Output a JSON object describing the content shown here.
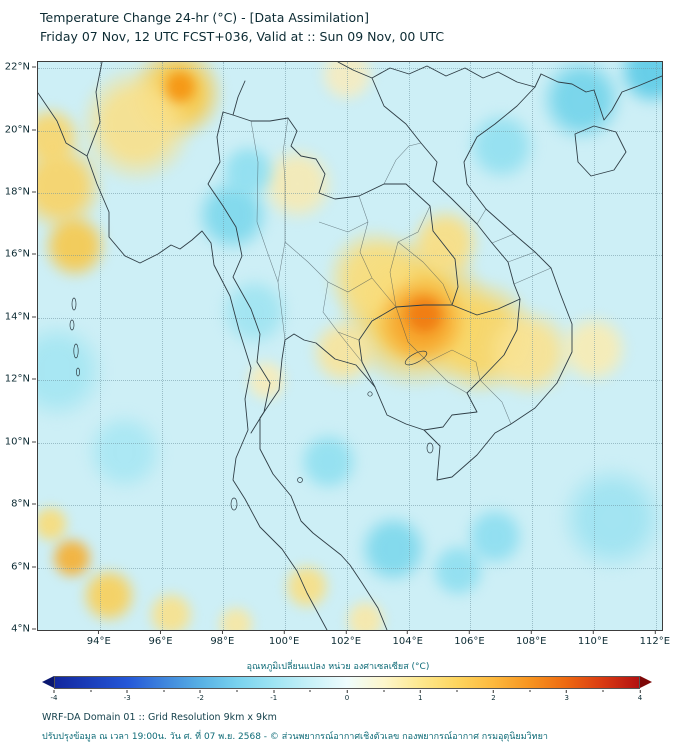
{
  "colors": {
    "background": "#ffffff",
    "map_base": "#cdeff6",
    "frame": "#3c3c3c",
    "grid": "#6f95a1",
    "title_text": "#0c2b33",
    "thai_text": "#0e6b77",
    "footer_text": "#16424d"
  },
  "header": {
    "title_line1": "Temperature Change 24-hr (°C) - [Data Assimilation]",
    "title_line2": "Friday 07 Nov, 12 UTC FCST+036, Valid at :: Sun 09 Nov, 00 UTC"
  },
  "map": {
    "lon_range": [
      92,
      112.2
    ],
    "lat_range": [
      4,
      22.2
    ],
    "x_ticks": [
      {
        "value": 94,
        "label": "94°E"
      },
      {
        "value": 96,
        "label": "96°E"
      },
      {
        "value": 98,
        "label": "98°E"
      },
      {
        "value": 100,
        "label": "100°E"
      },
      {
        "value": 102,
        "label": "102°E"
      },
      {
        "value": 104,
        "label": "104°E"
      },
      {
        "value": 106,
        "label": "106°E"
      },
      {
        "value": 108,
        "label": "108°E"
      },
      {
        "value": 110,
        "label": "110°E"
      },
      {
        "value": 112,
        "label": "112°E"
      }
    ],
    "y_ticks": [
      {
        "value": 4,
        "label": "4°N"
      },
      {
        "value": 6,
        "label": "6°N"
      },
      {
        "value": 8,
        "label": "8°N"
      },
      {
        "value": 10,
        "label": "10°N"
      },
      {
        "value": 12,
        "label": "12°N"
      },
      {
        "value": 14,
        "label": "14°N"
      },
      {
        "value": 16,
        "label": "16°N"
      },
      {
        "value": 18,
        "label": "18°N"
      },
      {
        "value": 20,
        "label": "20°N"
      },
      {
        "value": 22,
        "label": "22°N"
      }
    ]
  },
  "colorbar": {
    "title": "อุณหภูมิเปลี่ยนแปลง หน่วย องศาเซลเซียส (°C)",
    "min": -4,
    "max": 4,
    "major_ticks": [
      -4,
      -3,
      -2,
      -1,
      0,
      1,
      2,
      3,
      4
    ],
    "minor_step": 0.5,
    "under_color": "#0a1770",
    "over_color": "#7e0808",
    "stops": [
      {
        "value": -4,
        "color": "#12279e"
      },
      {
        "value": -3,
        "color": "#2457d8"
      },
      {
        "value": -2.5,
        "color": "#3f86dd"
      },
      {
        "value": -2,
        "color": "#58b1e4"
      },
      {
        "value": -1.5,
        "color": "#79d2ee"
      },
      {
        "value": -1,
        "color": "#9fe4f3"
      },
      {
        "value": -0.5,
        "color": "#c8f1f8"
      },
      {
        "value": 0,
        "color": "#eefcfd"
      },
      {
        "value": 0.5,
        "color": "#fdf6cc"
      },
      {
        "value": 1,
        "color": "#fde88f"
      },
      {
        "value": 1.5,
        "color": "#fdd55f"
      },
      {
        "value": 2,
        "color": "#fdb93e"
      },
      {
        "value": 2.5,
        "color": "#f7941f"
      },
      {
        "value": 3,
        "color": "#ee6911"
      },
      {
        "value": 3.5,
        "color": "#d93a12"
      },
      {
        "value": 4,
        "color": "#b31111"
      }
    ]
  },
  "footer": {
    "line1": "WRF-DA Domain 01 :: Grid Resolution 9km x 9km",
    "line2": "ปรับปรุงข้อมูล ณ เวลา 19:00น. วัน ศ. ที่ 07 พ.ย. 2568 - © ส่วนพยากรณ์อากาศเชิงตัวเลข กองพยากรณ์อากาศ กรมอุตุนิยมวิทยา"
  },
  "chart_data": {
    "type": "heatmap",
    "title": "Temperature Change 24-hr (°C) - [Data Assimilation]",
    "subtitle": "Friday 07 Nov, 12 UTC FCST+036, Valid at :: Sun 09 Nov, 00 UTC",
    "unit": "°C",
    "x_ticks": [
      "94°E",
      "96°E",
      "98°E",
      "100°E",
      "102°E",
      "104°E",
      "106°E",
      "108°E",
      "110°E",
      "112°E"
    ],
    "y_ticks": [
      "4°N",
      "6°N",
      "8°N",
      "10°N",
      "12°N",
      "14°N",
      "16°N",
      "18°N",
      "20°N",
      "22°N"
    ],
    "colorbar_range": [
      -4,
      4
    ],
    "anomalies": [
      {
        "lon": 104.2,
        "lat": 14.2,
        "r": 3.4,
        "value": 1.5,
        "color": "#f9cf55"
      },
      {
        "lon": 106.3,
        "lat": 13.4,
        "r": 2.6,
        "value": 1.3,
        "color": "#f9d564"
      },
      {
        "lon": 102.9,
        "lat": 15.3,
        "r": 2.2,
        "value": 1.0,
        "color": "#f8dd7d"
      },
      {
        "lon": 107.9,
        "lat": 12.9,
        "r": 2.0,
        "value": 0.8,
        "color": "#f9e291"
      },
      {
        "lon": 105.2,
        "lat": 16.4,
        "r": 1.6,
        "value": 0.9,
        "color": "#f9de83"
      },
      {
        "lon": 101.9,
        "lat": 12.9,
        "r": 1.5,
        "value": 0.7,
        "color": "#f8e49c"
      },
      {
        "lon": 100.4,
        "lat": 18.3,
        "r": 1.7,
        "value": 0.5,
        "color": "#f6eab4"
      },
      {
        "lon": 104.4,
        "lat": 13.9,
        "r": 2.0,
        "value": 2.0,
        "color": "#f6a52b"
      },
      {
        "lon": 104.5,
        "lat": 14.1,
        "r": 1.0,
        "value": 2.5,
        "color": "#f07a10"
      },
      {
        "lon": 96.5,
        "lat": 21.2,
        "r": 2.1,
        "value": 1.5,
        "color": "#f8c948"
      },
      {
        "lon": 95.2,
        "lat": 20.2,
        "r": 2.6,
        "value": 1.0,
        "color": "#f8e08b"
      },
      {
        "lon": 96.6,
        "lat": 21.4,
        "r": 0.85,
        "value": 2.2,
        "color": "#f59410"
      },
      {
        "lon": 92.7,
        "lat": 18.2,
        "r": 2.0,
        "value": 1.2,
        "color": "#f8d367"
      },
      {
        "lon": 93.2,
        "lat": 16.3,
        "r": 1.5,
        "value": 1.3,
        "color": "#f6c94f"
      },
      {
        "lon": 92.4,
        "lat": 19.8,
        "r": 1.4,
        "value": 1.1,
        "color": "#f8d66e"
      },
      {
        "lon": 94.3,
        "lat": 5.1,
        "r": 1.3,
        "value": 1.2,
        "color": "#f8d05c"
      },
      {
        "lon": 93.1,
        "lat": 6.3,
        "r": 1.0,
        "value": 1.6,
        "color": "#f5b035"
      },
      {
        "lon": 92.4,
        "lat": 7.4,
        "r": 0.9,
        "value": 0.9,
        "color": "#f8dc7a"
      },
      {
        "lon": 96.3,
        "lat": 4.5,
        "r": 1.1,
        "value": 0.8,
        "color": "#f8e18c"
      },
      {
        "lon": 98.4,
        "lat": 4.2,
        "r": 0.9,
        "value": 0.6,
        "color": "#f7e7a3"
      },
      {
        "lon": 100.7,
        "lat": 5.4,
        "r": 1.1,
        "value": 0.8,
        "color": "#f8df85"
      },
      {
        "lon": 102.6,
        "lat": 4.3,
        "r": 1.0,
        "value": 0.6,
        "color": "#f8e8a8"
      },
      {
        "lon": 110.0,
        "lat": 13.0,
        "r": 1.6,
        "value": 0.5,
        "color": "#f8ecb4"
      },
      {
        "lon": 99.4,
        "lat": 12.0,
        "r": 1.0,
        "value": 0.4,
        "color": "#f7ecba"
      },
      {
        "lon": 102.0,
        "lat": 21.8,
        "r": 1.3,
        "value": 0.4,
        "color": "#f6ecc0"
      },
      {
        "lon": 98.3,
        "lat": 17.3,
        "r": 1.7,
        "value": -1.0,
        "color": "#7ed8ec"
      },
      {
        "lon": 98.8,
        "lat": 18.7,
        "r": 1.3,
        "value": -0.8,
        "color": "#90dff0"
      },
      {
        "lon": 109.6,
        "lat": 21.0,
        "r": 1.9,
        "value": -1.2,
        "color": "#74d4ea"
      },
      {
        "lon": 111.9,
        "lat": 21.9,
        "r": 1.6,
        "value": -1.5,
        "color": "#60cce7"
      },
      {
        "lon": 103.5,
        "lat": 6.6,
        "r": 1.6,
        "value": -1.0,
        "color": "#7ed8ec"
      },
      {
        "lon": 105.6,
        "lat": 5.9,
        "r": 1.3,
        "value": -0.8,
        "color": "#90dff0"
      },
      {
        "lon": 101.4,
        "lat": 9.4,
        "r": 1.4,
        "value": -0.7,
        "color": "#92e0f0"
      },
      {
        "lon": 92.6,
        "lat": 12.3,
        "r": 2.2,
        "value": -0.5,
        "color": "#a5e6f2"
      },
      {
        "lon": 99.0,
        "lat": 14.2,
        "r": 1.6,
        "value": -0.5,
        "color": "#a0e4f1"
      },
      {
        "lon": 110.6,
        "lat": 7.6,
        "r": 2.4,
        "value": -0.5,
        "color": "#9fe3f1"
      },
      {
        "lon": 107.0,
        "lat": 19.5,
        "r": 1.6,
        "value": -0.7,
        "color": "#93e0f0"
      },
      {
        "lon": 94.8,
        "lat": 9.7,
        "r": 1.8,
        "value": -0.4,
        "color": "#a9e7f3"
      },
      {
        "lon": 106.8,
        "lat": 7.0,
        "r": 1.4,
        "value": -0.8,
        "color": "#8edef0"
      }
    ]
  }
}
